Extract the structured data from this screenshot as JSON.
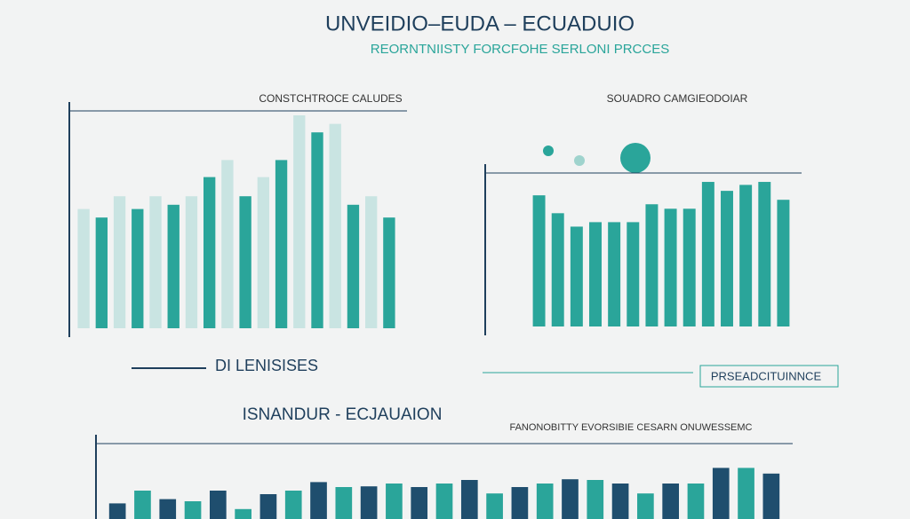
{
  "title": "UNVEIDIO–EUDA – ECUADUIO",
  "subtitle": "REORNTNIISTY FORCFOHE SERLONI PRCCES",
  "chart_data": [
    {
      "type": "bar",
      "title": "CONSTCHTROCE CALUDES",
      "caption": "DI LENISISES",
      "values": [
        56,
        52,
        62,
        56,
        62,
        58,
        62,
        71,
        79,
        62,
        71,
        79,
        100,
        92,
        96,
        58,
        62,
        52
      ],
      "colors": [
        "#c9e4e2",
        "#2aa59a"
      ],
      "ylim": [
        0,
        100
      ]
    },
    {
      "type": "bar",
      "title": "SOUADRO CAMGIEODOIAR",
      "caption": "PRSEADCITUINNCE",
      "values": [
        88,
        76,
        67,
        70,
        70,
        70,
        82,
        79,
        79,
        97,
        91,
        95,
        97,
        85
      ],
      "colors": [
        "#2aa59a",
        "#2aa59a"
      ],
      "ylim": [
        0,
        100
      ]
    },
    {
      "type": "bar",
      "title": "ISNANDUR - ECJAUAION",
      "caption": "FANONOBITTY EVORSIBIE CESARN ONUWESSEMC",
      "values": [
        22,
        40,
        28,
        25,
        40,
        14,
        35,
        40,
        52,
        45,
        46,
        50,
        45,
        50,
        55,
        36,
        45,
        50,
        56,
        55,
        50,
        36,
        50,
        50,
        72,
        72,
        64
      ],
      "colors": [
        "#1f4e6e",
        "#2aa59a"
      ],
      "ylim": [
        0,
        100
      ]
    }
  ]
}
